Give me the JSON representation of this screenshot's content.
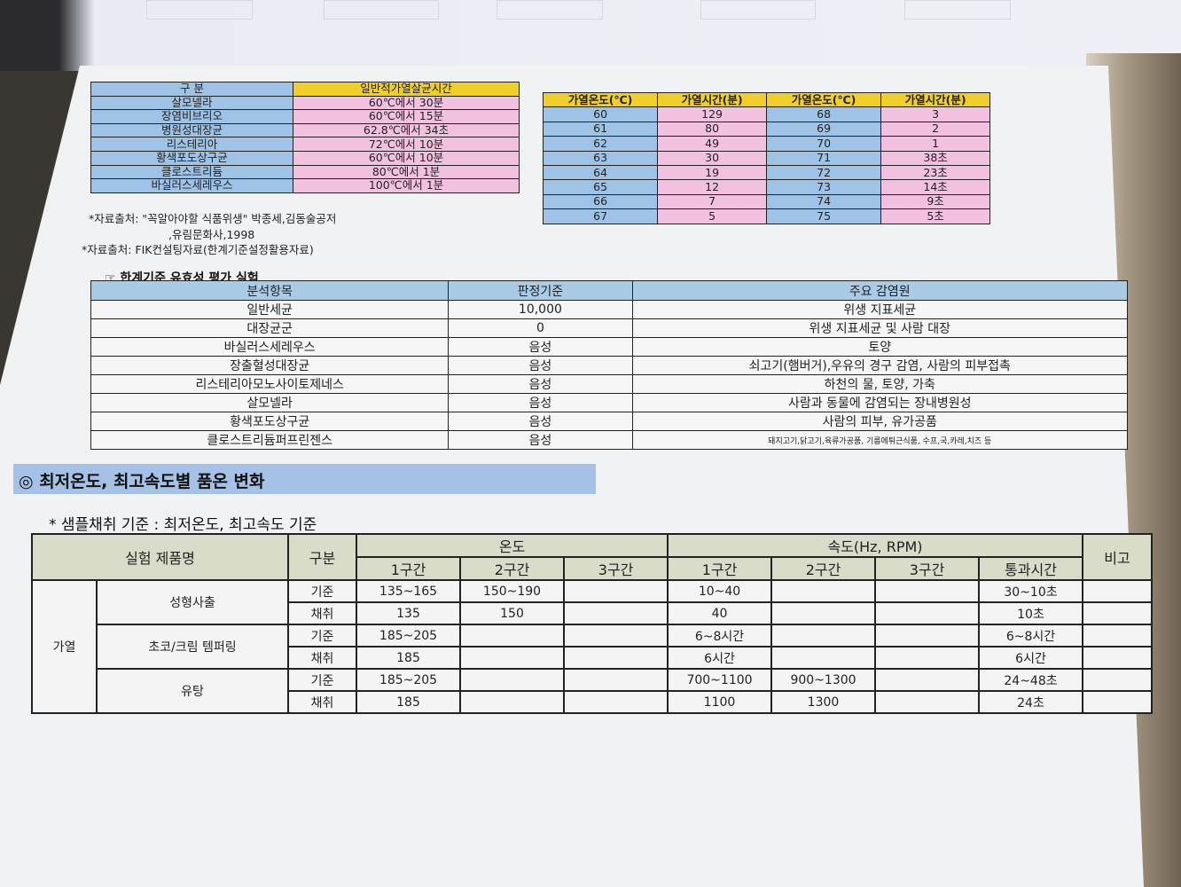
{
  "table1": {
    "headers": [
      "구 분",
      "일반적가열살균시간"
    ],
    "rows": [
      [
        "살모넬라",
        "60℃에서 30분"
      ],
      [
        "장염비브리오",
        "60℃에서 15분"
      ],
      [
        "병원성대장균",
        "62.8℃에서 34초"
      ],
      [
        "리스테리아",
        "72℃에서 10분"
      ],
      [
        "황색포도상구균",
        "60℃에서 10분"
      ],
      [
        "클로스트리듐",
        "80℃에서 1분"
      ],
      [
        "바실러스세레우스",
        "100℃에서 1분"
      ]
    ]
  },
  "notes": [
    "*자료출처: \"꼭알아야할 식품위생\" 박종세,김동술공저",
    ",유림문화사,1998",
    "*자료출처: FIK컨설팅자료(한계기준설정활용자료)"
  ],
  "table2": {
    "headers": [
      "가열온도(℃)",
      "가열시간(분)",
      "가열온도(℃)",
      "가열시간(분)"
    ],
    "rows": [
      [
        "60",
        "129",
        "68",
        "3"
      ],
      [
        "61",
        "80",
        "69",
        "2"
      ],
      [
        "62",
        "49",
        "70",
        "1"
      ],
      [
        "63",
        "30",
        "71",
        "38초"
      ],
      [
        "64",
        "19",
        "72",
        "23초"
      ],
      [
        "65",
        "12",
        "73",
        "14초"
      ],
      [
        "66",
        "7",
        "74",
        "9초"
      ],
      [
        "67",
        "5",
        "75",
        "5초"
      ]
    ]
  },
  "validation": {
    "title": "☞ 한계기준 유효성 평가 실험",
    "headers": [
      "분석항목",
      "판정기준",
      "주요 감염원"
    ],
    "rows": [
      [
        "일반세균",
        "10,000",
        "위생 지표세균"
      ],
      [
        "대장균군",
        "0",
        "위생 지표세균 및 사람 대장"
      ],
      [
        "바실러스세레우스",
        "음성",
        "토양"
      ],
      [
        "장출혈성대장균",
        "음성",
        "쇠고기(햄버거),우유의 경구 감염, 사람의 피부접촉"
      ],
      [
        "리스테리아모노사이토제네스",
        "음성",
        "하천의 물, 토양, 가축"
      ],
      [
        "살모넬라",
        "음성",
        "사람과 동물에 감염되는 장내병원성"
      ],
      [
        "황색포도상구균",
        "음성",
        "사람의 피부, 유가공품"
      ],
      [
        "클로스트리듐퍼프린젠스",
        "음성",
        "돼지고기,닭고기,육류가공품, 기름에튀근식품, 수프,국,카레,치즈 등"
      ]
    ]
  },
  "section": {
    "title": "◎ 최저온도, 최고속도별 품온 변화",
    "subtitle": "* 샘플채취 기준 : 최저온도, 최고속도 기준"
  },
  "table4": {
    "h_product": "실험 제품명",
    "h_type": "구분",
    "h_temp": "온도",
    "h_speed": "속도(Hz, RPM)",
    "h_note": "비고",
    "sub": [
      "1구간",
      "2구간",
      "3구간",
      "1구간",
      "2구간",
      "3구간",
      "통과시간"
    ],
    "group": "가열",
    "products": [
      {
        "name": "성형사출",
        "rows": [
          [
            "기준",
            "135~165",
            "150~190",
            "",
            "10~40",
            "",
            "",
            "30~10초"
          ],
          [
            "채취",
            "135",
            "150",
            "",
            "40",
            "",
            "",
            "10초"
          ]
        ]
      },
      {
        "name": "초코/크림 템퍼링",
        "rows": [
          [
            "기준",
            "185~205",
            "",
            "",
            "6~8시간",
            "",
            "",
            "6~8시간"
          ],
          [
            "채취",
            "185",
            "",
            "",
            "6시간",
            "",
            "",
            "6시간"
          ]
        ]
      },
      {
        "name": "유탕",
        "rows": [
          [
            "기준",
            "185~205",
            "",
            "",
            "700~1100",
            "900~1300",
            "",
            "24~48초"
          ],
          [
            "채취",
            "185",
            "",
            "",
            "1100",
            "1300",
            "",
            "24초"
          ]
        ]
      }
    ]
  }
}
